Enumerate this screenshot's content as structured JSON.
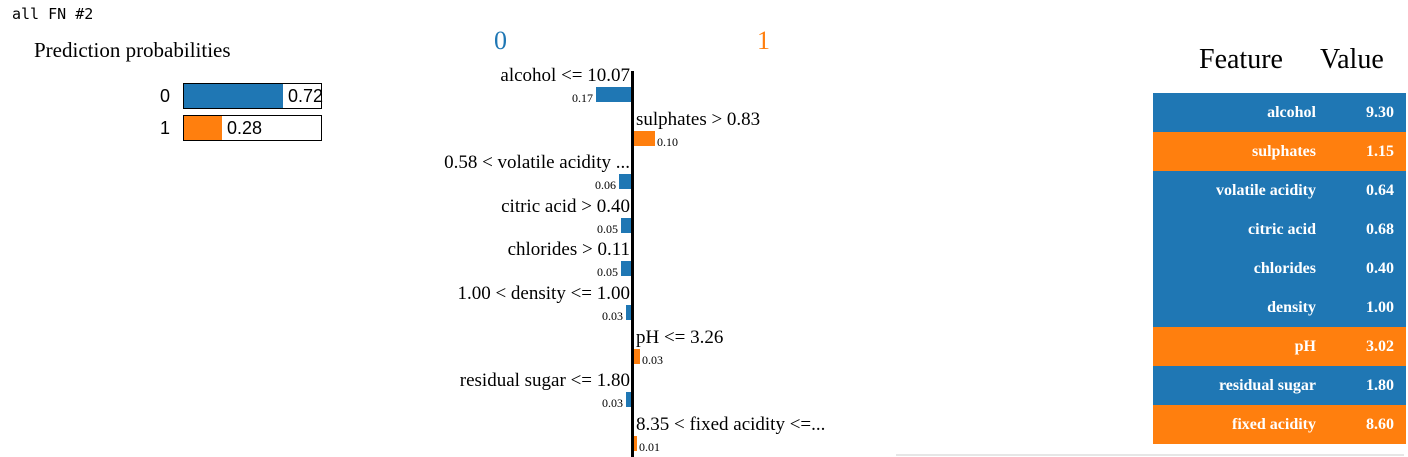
{
  "header": {
    "text": "all FN #2"
  },
  "prediction_probabilities": {
    "title": "Prediction probabilities",
    "rows": [
      {
        "label": "0",
        "value_text": "0.72",
        "value": 0.72,
        "color": "#1f77b4"
      },
      {
        "label": "1",
        "value_text": "0.28",
        "value": 0.28,
        "color": "#ff7f0e"
      }
    ]
  },
  "explanation": {
    "class_labels": [
      {
        "label": "0",
        "color": "#1f77b4"
      },
      {
        "label": "1",
        "color": "#ff7f0e"
      }
    ]
  },
  "chart_data": {
    "type": "bar",
    "orientation": "horizontal",
    "items": [
      {
        "feature": "alcohol <= 10.07",
        "weight": 0.17,
        "weight_text": "0.17",
        "class": "0",
        "color": "#1f77b4"
      },
      {
        "feature": "sulphates > 0.83",
        "weight": 0.1,
        "weight_text": "0.10",
        "class": "1",
        "color": "#ff7f0e"
      },
      {
        "feature": "0.58 < volatile acidity ...",
        "weight": 0.06,
        "weight_text": "0.06",
        "class": "0",
        "color": "#1f77b4"
      },
      {
        "feature": "citric acid > 0.40",
        "weight": 0.05,
        "weight_text": "0.05",
        "class": "0",
        "color": "#1f77b4"
      },
      {
        "feature": "chlorides > 0.11",
        "weight": 0.05,
        "weight_text": "0.05",
        "class": "0",
        "color": "#1f77b4"
      },
      {
        "feature": "1.00 < density <= 1.00",
        "weight": 0.03,
        "weight_text": "0.03",
        "class": "0",
        "color": "#1f77b4"
      },
      {
        "feature": "pH <= 3.26",
        "weight": 0.03,
        "weight_text": "0.03",
        "class": "1",
        "color": "#ff7f0e"
      },
      {
        "feature": "residual sugar <= 1.80",
        "weight": 0.03,
        "weight_text": "0.03",
        "class": "0",
        "color": "#1f77b4"
      },
      {
        "feature": "8.35 < fixed acidity <=...",
        "weight": 0.01,
        "weight_text": "0.01",
        "class": "1",
        "color": "#ff7f0e"
      }
    ]
  },
  "feature_table": {
    "headers": {
      "feature": "Feature",
      "value": "Value"
    },
    "rows": [
      {
        "feature": "alcohol",
        "value": "9.30",
        "color": "#1f77b4"
      },
      {
        "feature": "sulphates",
        "value": "1.15",
        "color": "#ff7f0e"
      },
      {
        "feature": "volatile acidity",
        "value": "0.64",
        "color": "#1f77b4"
      },
      {
        "feature": "citric acid",
        "value": "0.68",
        "color": "#1f77b4"
      },
      {
        "feature": "chlorides",
        "value": "0.40",
        "color": "#1f77b4"
      },
      {
        "feature": "density",
        "value": "1.00",
        "color": "#1f77b4"
      },
      {
        "feature": "pH",
        "value": "3.02",
        "color": "#ff7f0e"
      },
      {
        "feature": "residual sugar",
        "value": "1.80",
        "color": "#1f77b4"
      },
      {
        "feature": "fixed acidity",
        "value": "8.60",
        "color": "#ff7f0e"
      }
    ]
  }
}
